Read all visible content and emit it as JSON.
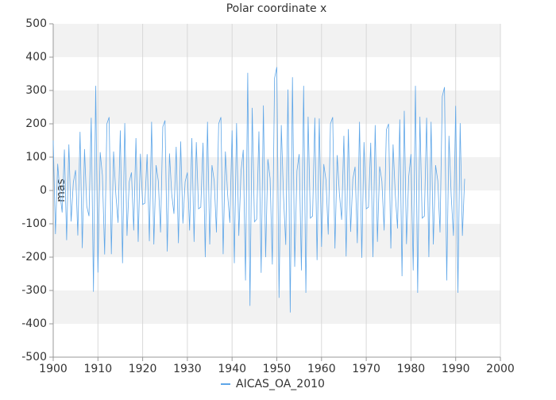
{
  "chart_data": {
    "type": "line",
    "title": "Polar coordinate x",
    "y_label": "mas",
    "x": [
      1900,
      1900.5,
      1901,
      1901.5,
      1902,
      1902.5,
      1903,
      1903.5,
      1904,
      1904.5,
      1905,
      1905.5,
      1906,
      1906.5,
      1907,
      1907.5,
      1908,
      1908.5,
      1909,
      1909.5,
      1910,
      1910.5,
      1911,
      1911.5,
      1912,
      1912.5,
      1913,
      1913.5,
      1914,
      1914.5,
      1915,
      1915.5,
      1916,
      1916.5,
      1917,
      1917.5,
      1918,
      1918.5,
      1919,
      1919.5,
      1920,
      1920.5,
      1921,
      1921.5,
      1922,
      1922.5,
      1923,
      1923.5,
      1924,
      1924.5,
      1925,
      1925.5,
      1926,
      1926.5,
      1927,
      1927.5,
      1928,
      1928.5,
      1929,
      1929.5,
      1930,
      1930.5,
      1931,
      1931.5,
      1932,
      1932.5,
      1933,
      1933.5,
      1934,
      1934.5,
      1935,
      1935.5,
      1936,
      1936.5,
      1937,
      1937.5,
      1938,
      1938.5,
      1939,
      1939.5,
      1940,
      1940.5,
      1941,
      1941.5,
      1942,
      1942.5,
      1943,
      1943.5,
      1944,
      1944.5,
      1945,
      1945.5,
      1946,
      1946.5,
      1947,
      1947.5,
      1948,
      1948.5,
      1949,
      1949.5,
      1950,
      1950.5,
      1951,
      1951.5,
      1952,
      1952.5,
      1953,
      1953.5,
      1954,
      1954.5,
      1955,
      1955.5,
      1956,
      1956.5,
      1957,
      1957.5,
      1958,
      1958.5,
      1959,
      1959.5,
      1960,
      1960.5,
      1961,
      1961.5,
      1962,
      1962.5,
      1963,
      1963.5,
      1964,
      1964.5,
      1965,
      1965.5,
      1966,
      1966.5,
      1967,
      1967.5,
      1968,
      1968.5,
      1969,
      1969.5,
      1970,
      1970.5,
      1971,
      1971.5,
      1972,
      1972.5,
      1973,
      1973.5,
      1974,
      1974.5,
      1975,
      1975.5,
      1976,
      1976.5,
      1977,
      1977.5,
      1978,
      1978.5,
      1979,
      1979.5,
      1980,
      1980.5,
      1981,
      1981.5,
      1982,
      1982.5,
      1983,
      1983.5,
      1984,
      1984.5,
      1985,
      1985.5,
      1986,
      1986.5,
      1987,
      1987.5,
      1988,
      1988.5,
      1989,
      1989.5,
      1990,
      1990.5,
      1991,
      1991.5,
      1992
    ],
    "series": [
      {
        "name": "AICAS_OA_2010",
        "color": "#5ea6e8",
        "values": [
          150,
          -131,
          80,
          -8,
          -66,
          123,
          -149,
          138,
          -93,
          24,
          61,
          -135,
          176,
          -173,
          124,
          -47,
          -77,
          218,
          -304,
          314,
          -246,
          115,
          45,
          -192,
          200,
          220,
          -191,
          117,
          -11,
          -97,
          180,
          -218,
          202,
          -136,
          26,
          54,
          -120,
          157,
          -154,
          110,
          -42,
          -38,
          109,
          -152,
          206,
          -162,
          76,
          29,
          -126,
          191,
          210,
          -183,
          111,
          -11,
          -70,
          131,
          -158,
          147,
          -99,
          26,
          54,
          -120,
          157,
          -154,
          145,
          -55,
          -50,
          143,
          -200,
          206,
          -162,
          76,
          29,
          -126,
          200,
          220,
          -191,
          117,
          -11,
          -97,
          180,
          -218,
          202,
          -136,
          58,
          122,
          -270,
          353,
          -346,
          248,
          -94,
          -86,
          177,
          -247,
          255,
          -200,
          94,
          36,
          -222,
          337,
          370,
          -322,
          196,
          -19,
          -163,
          303,
          -366,
          340,
          -229,
          59,
          109,
          -240,
          314,
          -307,
          221,
          -83,
          -77,
          218,
          -209,
          216,
          -169,
          79,
          31,
          -132,
          200,
          220,
          -174,
          106,
          -10,
          -88,
          164,
          -198,
          184,
          -124,
          34,
          71,
          -158,
          206,
          -202,
          145,
          -55,
          -50,
          143,
          -200,
          196,
          -154,
          72,
          28,
          -120,
          182,
          200,
          -174,
          138,
          -13,
          -114,
          213,
          -257,
          239,
          -161,
          42,
          109,
          -240,
          314,
          -307,
          221,
          -83,
          -77,
          218,
          -200,
          206,
          -162,
          76,
          29,
          -126,
          282,
          310,
          -270,
          164,
          -16,
          -136,
          254,
          -307,
          202,
          -136,
          35
        ]
      }
    ],
    "xlim": [
      1900,
      2000
    ],
    "xticks": [
      1900,
      1910,
      1920,
      1930,
      1940,
      1950,
      1960,
      1970,
      1980,
      1990,
      2000
    ],
    "ylim": [
      -500,
      500
    ],
    "yticks": [
      -500,
      -400,
      -300,
      -200,
      -100,
      0,
      100,
      200,
      300,
      400,
      500
    ],
    "grid": true,
    "legend": "bottom"
  }
}
